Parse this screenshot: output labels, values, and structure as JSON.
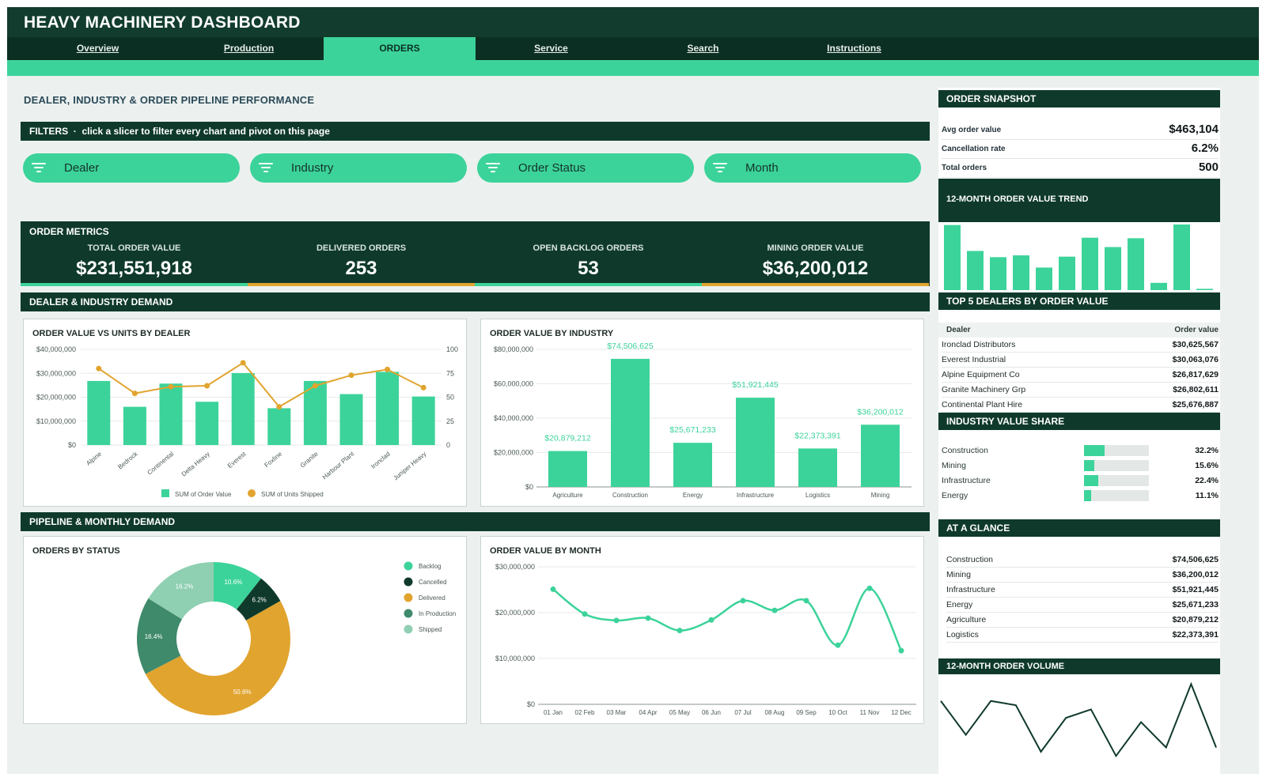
{
  "app": {
    "title": "HEAVY MACHINERY DASHBOARD"
  },
  "nav": {
    "tabs": [
      {
        "label": "Overview",
        "active": false
      },
      {
        "label": "Production",
        "active": false
      },
      {
        "label": "ORDERS",
        "active": true
      },
      {
        "label": "Service",
        "active": false
      },
      {
        "label": "Search",
        "active": false
      },
      {
        "label": "Instructions",
        "active": false
      }
    ]
  },
  "colors": {
    "dark": "#0f3a2b",
    "accent": "#3cd39a",
    "gold": "#e1a42f",
    "bg": "#ecf1f0"
  },
  "section_title": "DEALER, INDUSTRY & ORDER PIPELINE PERFORMANCE",
  "filters": {
    "header": "FILTERS",
    "hint": "click a slicer to filter every chart and pivot on this page",
    "slicers": [
      {
        "label": "Dealer",
        "icon": "filter-icon"
      },
      {
        "label": "Industry",
        "icon": "filter-icon"
      },
      {
        "label": "Order Status",
        "icon": "filter-icon"
      },
      {
        "label": "Month",
        "icon": "filter-icon"
      }
    ]
  },
  "metrics": {
    "title": "ORDER METRICS",
    "items": [
      {
        "label": "TOTAL ORDER VALUE",
        "value": "$231,551,918"
      },
      {
        "label": "DELIVERED ORDERS",
        "value": "253"
      },
      {
        "label": "OPEN BACKLOG ORDERS",
        "value": "53"
      },
      {
        "label": "MINING ORDER VALUE",
        "value": "$36,200,012"
      }
    ]
  },
  "headers": {
    "dealer_industry": "DEALER & INDUSTRY DEMAND",
    "pipeline": "PIPELINE & MONTHLY DEMAND"
  },
  "chart_data": [
    {
      "type": "bar",
      "title": "ORDER VALUE VS UNITS BY DEALER",
      "categories": [
        "Alpine",
        "Bedrock",
        "Continental",
        "Delta Heavy",
        "Everest",
        "Foxline",
        "Granite",
        "Harbour Plant",
        "Ironclad",
        "Juniper Heavy"
      ],
      "series": [
        {
          "name": "SUM of Order Value",
          "kind": "bar",
          "axis": "left",
          "values": [
            26800000,
            16000000,
            25700000,
            18100000,
            30100000,
            15400000,
            26800000,
            21300000,
            30600000,
            20300000
          ]
        },
        {
          "name": "SUM of Units Shipped",
          "kind": "line",
          "axis": "right",
          "values": [
            80,
            54,
            61,
            62,
            86,
            40,
            62,
            73,
            79,
            60
          ]
        }
      ],
      "yticks_left": [
        "$40,000,000",
        "$30,000,000",
        "$20,000,000",
        "$10,000,000",
        "$0"
      ],
      "yticks_right": [
        "100",
        "75",
        "50",
        "25",
        "0"
      ],
      "ylim": [
        0,
        40000000
      ],
      "y2lim": [
        0,
        100
      ],
      "legend": "bottom"
    },
    {
      "type": "bar",
      "title": "ORDER VALUE BY INDUSTRY",
      "categories": [
        "Agriculture",
        "Construction",
        "Energy",
        "Infrastructure",
        "Logistics",
        "Mining"
      ],
      "values": [
        20879212,
        74506625,
        25671233,
        51921445,
        22373391,
        36200012
      ],
      "labels": [
        "$20,879,212",
        "$74,506,625",
        "$25,671,233",
        "$51,921,445",
        "$22,373,391",
        "$36,200,012"
      ],
      "yticks": [
        "$80,000,000",
        "$60,000,000",
        "$40,000,000",
        "$20,000,000",
        "$0"
      ],
      "ylim": [
        0,
        80000000
      ]
    },
    {
      "type": "pie",
      "title": "ORDERS BY STATUS",
      "slices": [
        {
          "name": "Backlog",
          "value": 10.6,
          "label": "10.6%",
          "color": "#3cd39a"
        },
        {
          "name": "Cancelled",
          "value": 6.2,
          "label": "6.2%",
          "color": "#0f3a2b"
        },
        {
          "name": "Delivered",
          "value": 50.6,
          "label": "50.6%",
          "color": "#e1a42f"
        },
        {
          "name": "In Production",
          "value": 16.4,
          "label": "16.4%",
          "color": "#3f8a6b"
        },
        {
          "name": "Shipped",
          "value": 16.2,
          "label": "16.2%",
          "color": "#8fcfb2"
        }
      ],
      "legend": "right"
    },
    {
      "type": "line",
      "title": "ORDER VALUE BY MONTH",
      "x": [
        "01 Jan",
        "02 Feb",
        "03 Mar",
        "04 Apr",
        "05 May",
        "06 Jun",
        "07 Jul",
        "08 Aug",
        "09 Sep",
        "10 Oct",
        "11 Nov",
        "12 Dec"
      ],
      "values": [
        25100000,
        19700000,
        18300000,
        18800000,
        16100000,
        18400000,
        22600000,
        20500000,
        22600000,
        12900000,
        25300000,
        11700000
      ],
      "yticks": [
        "$30,000,000",
        "$20,000,000",
        "$10,000,000",
        "$0"
      ],
      "ylim": [
        0,
        30000000
      ]
    },
    {
      "type": "bar",
      "title": "12-MONTH ORDER VALUE TREND",
      "values": [
        25100000,
        15100000,
        12700000,
        13400000,
        8700000,
        12900000,
        20200000,
        16600000,
        20000000,
        2800000,
        25300000,
        500000
      ],
      "ylim": [
        0,
        25300000
      ]
    },
    {
      "type": "line",
      "title": "12-MONTH ORDER VOLUME",
      "values": [
        45,
        37,
        45,
        44,
        33,
        41,
        43,
        32,
        40,
        34,
        49,
        34
      ]
    }
  ],
  "snapshot": {
    "title": "ORDER SNAPSHOT",
    "rows": [
      {
        "label": "Avg order value",
        "value": "$463,104"
      },
      {
        "label": "Cancellation rate",
        "value": "6.2%"
      },
      {
        "label": "Total orders",
        "value": "500"
      }
    ]
  },
  "top_dealers": {
    "title": "TOP 5 DEALERS BY ORDER VALUE",
    "col_dealer": "Dealer",
    "col_value": "Order value",
    "rows": [
      {
        "dealer": "Ironclad Distributors",
        "value": "$30,625,567"
      },
      {
        "dealer": "Everest Industrial",
        "value": "$30,063,076"
      },
      {
        "dealer": "Alpine Equipment Co",
        "value": "$26,817,629"
      },
      {
        "dealer": "Granite Machinery Grp",
        "value": "$26,802,611"
      },
      {
        "dealer": "Continental Plant Hire",
        "value": "$25,676,887"
      }
    ]
  },
  "industry_share": {
    "title": "INDUSTRY VALUE SHARE",
    "rows": [
      {
        "label": "Construction",
        "pct": "32.2%",
        "fraction": 0.322
      },
      {
        "label": "Mining",
        "pct": "15.6%",
        "fraction": 0.156
      },
      {
        "label": "Infrastructure",
        "pct": "22.4%",
        "fraction": 0.224
      },
      {
        "label": "Energy",
        "pct": "11.1%",
        "fraction": 0.111
      }
    ]
  },
  "at_a_glance": {
    "title": "AT A GLANCE",
    "rows": [
      {
        "label": "Construction",
        "value": "$74,506,625"
      },
      {
        "label": "Mining",
        "value": "$36,200,012"
      },
      {
        "label": "Infrastructure",
        "value": "$51,921,445"
      },
      {
        "label": "Energy",
        "value": "$25,671,233"
      },
      {
        "label": "Agriculture",
        "value": "$20,879,212"
      },
      {
        "label": "Logistics",
        "value": "$22,373,391"
      }
    ]
  }
}
